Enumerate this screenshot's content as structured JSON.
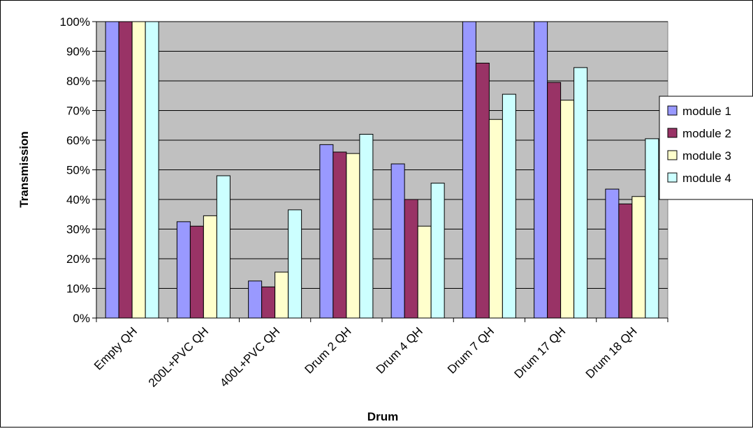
{
  "chart_data": {
    "type": "bar",
    "title": "",
    "xlabel": "Drum",
    "ylabel": "Transmission",
    "categories": [
      "Empty QH",
      "200L+PVC QH",
      "400L+PVC QH",
      "Drum 2 QH",
      "Drum 4 QH",
      "Drum 7 QH",
      "Drum 17 QH",
      "Drum 18 QH"
    ],
    "yticks": [
      "0%",
      "10%",
      "20%",
      "30%",
      "40%",
      "50%",
      "60%",
      "70%",
      "80%",
      "90%",
      "100%"
    ],
    "ylim": [
      0,
      100
    ],
    "grid": true,
    "legend_position": "right",
    "series": [
      {
        "name": "module 1",
        "color": "#9999ff",
        "values": [
          100,
          32.5,
          12.5,
          58.5,
          52,
          102,
          100,
          43.5
        ]
      },
      {
        "name": "module 2",
        "color": "#993366",
        "values": [
          100,
          31,
          10.5,
          56,
          40,
          86,
          79.5,
          38.5
        ]
      },
      {
        "name": "module 3",
        "color": "#ffffcc",
        "values": [
          100,
          34.5,
          15.5,
          55.5,
          31,
          67,
          73.5,
          41
        ]
      },
      {
        "name": "module 4",
        "color": "#ccffff",
        "values": [
          100,
          48,
          36.5,
          62,
          45.5,
          75.5,
          84.5,
          60.5
        ]
      }
    ],
    "plot_background": "#c0c0c0"
  }
}
